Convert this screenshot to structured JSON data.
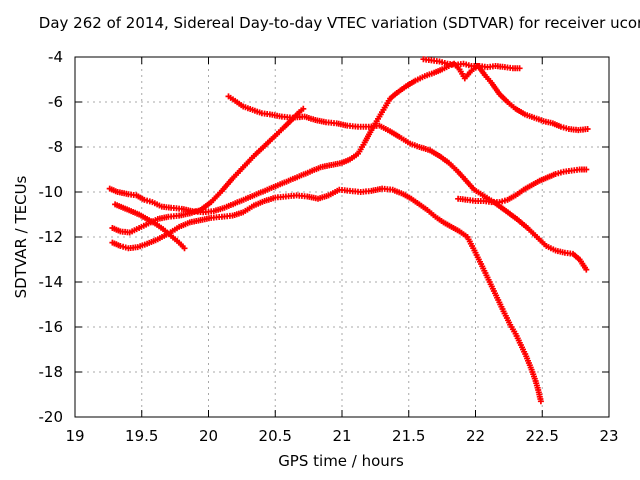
{
  "title": "Day 262 of 2014, Sidereal Day-to-day VTEC variation (SDTVAR) for receiver ucor",
  "chart_data": {
    "type": "scatter",
    "marker": "plus",
    "title": "Day 262 of 2014, Sidereal Day-to-day VTEC variation (SDTVAR) for receiver ucor",
    "xlabel": "GPS time / hours",
    "ylabel": "SDTVAR / TECUs",
    "xlim": [
      19,
      23
    ],
    "ylim": [
      -20,
      -4
    ],
    "grid": true,
    "legend": "none",
    "x_ticks": [
      19,
      19.5,
      20,
      20.5,
      21,
      21.5,
      22,
      22.5,
      23
    ],
    "y_ticks": [
      -20,
      -18,
      -16,
      -14,
      -12,
      -10,
      -8,
      -6,
      -4
    ],
    "x_tick_labels": [
      "19",
      "19.5",
      "20",
      "20.5",
      "21",
      "21.5",
      "22",
      "22.5",
      "23"
    ],
    "y_tick_labels": [
      "-20",
      "-18",
      "-16",
      "-14",
      "-12",
      "-10",
      "-8",
      "-6",
      "-4"
    ],
    "colors": {
      "series": "#ff0000",
      "grid": "#a8a8a8",
      "axis": "#000000",
      "background": "#ffffff",
      "text": "#000000"
    },
    "series": [
      {
        "name": "trace-1",
        "points": [
          [
            20.15,
            -5.75
          ],
          [
            20.2,
            -5.95
          ],
          [
            20.26,
            -6.2
          ],
          [
            20.33,
            -6.35
          ],
          [
            20.4,
            -6.5
          ],
          [
            20.46,
            -6.55
          ],
          [
            20.55,
            -6.65
          ],
          [
            20.63,
            -6.7
          ],
          [
            20.72,
            -6.65
          ],
          [
            20.8,
            -6.8
          ],
          [
            20.88,
            -6.9
          ],
          [
            20.96,
            -6.95
          ],
          [
            21.04,
            -7.05
          ],
          [
            21.12,
            -7.1
          ],
          [
            21.2,
            -7.1
          ],
          [
            21.28,
            -7.05
          ],
          [
            21.36,
            -7.3
          ],
          [
            21.43,
            -7.55
          ],
          [
            21.51,
            -7.85
          ],
          [
            21.58,
            -8.0
          ],
          [
            21.66,
            -8.15
          ],
          [
            21.73,
            -8.4
          ],
          [
            21.8,
            -8.7
          ],
          [
            21.87,
            -9.1
          ],
          [
            21.93,
            -9.5
          ],
          [
            21.99,
            -9.9
          ],
          [
            22.07,
            -10.2
          ],
          [
            22.15,
            -10.5
          ],
          [
            22.23,
            -10.85
          ],
          [
            22.31,
            -11.2
          ],
          [
            22.39,
            -11.6
          ],
          [
            22.46,
            -12.0
          ],
          [
            22.53,
            -12.4
          ],
          [
            22.6,
            -12.6
          ],
          [
            22.67,
            -12.7
          ],
          [
            22.73,
            -12.75
          ],
          [
            22.78,
            -13.0
          ],
          [
            22.83,
            -13.45
          ]
        ]
      },
      {
        "name": "trace-2",
        "points": [
          [
            19.28,
            -11.6
          ],
          [
            19.34,
            -11.75
          ],
          [
            19.41,
            -11.8
          ],
          [
            19.48,
            -11.6
          ],
          [
            19.55,
            -11.4
          ],
          [
            19.62,
            -11.2
          ],
          [
            19.7,
            -11.1
          ],
          [
            19.78,
            -11.05
          ],
          [
            19.86,
            -10.95
          ],
          [
            19.94,
            -10.8
          ],
          [
            20.02,
            -10.45
          ],
          [
            20.1,
            -9.95
          ],
          [
            20.18,
            -9.4
          ],
          [
            20.26,
            -8.9
          ],
          [
            20.34,
            -8.4
          ],
          [
            20.42,
            -7.95
          ],
          [
            20.5,
            -7.5
          ],
          [
            20.57,
            -7.1
          ],
          [
            20.63,
            -6.75
          ],
          [
            20.68,
            -6.45
          ],
          [
            20.71,
            -6.3
          ]
        ]
      },
      {
        "name": "trace-3",
        "points": [
          [
            19.26,
            -9.85
          ],
          [
            19.32,
            -10.0
          ],
          [
            19.4,
            -10.1
          ],
          [
            19.46,
            -10.15
          ],
          [
            19.52,
            -10.35
          ],
          [
            19.58,
            -10.45
          ],
          [
            19.65,
            -10.65
          ],
          [
            19.72,
            -10.7
          ],
          [
            19.8,
            -10.75
          ],
          [
            19.88,
            -10.85
          ],
          [
            19.96,
            -10.9
          ],
          [
            20.04,
            -10.85
          ],
          [
            20.12,
            -10.7
          ],
          [
            20.2,
            -10.5
          ],
          [
            20.28,
            -10.3
          ],
          [
            20.36,
            -10.1
          ],
          [
            20.44,
            -9.9
          ],
          [
            20.52,
            -9.7
          ],
          [
            20.6,
            -9.5
          ],
          [
            20.68,
            -9.3
          ],
          [
            20.76,
            -9.1
          ],
          [
            20.84,
            -8.9
          ],
          [
            20.92,
            -8.8
          ],
          [
            21.0,
            -8.7
          ],
          [
            21.06,
            -8.55
          ],
          [
            21.12,
            -8.3
          ],
          [
            21.17,
            -7.8
          ],
          [
            21.22,
            -7.25
          ],
          [
            21.27,
            -6.75
          ],
          [
            21.31,
            -6.35
          ],
          [
            21.36,
            -5.85
          ],
          [
            21.41,
            -5.6
          ],
          [
            21.48,
            -5.3
          ],
          [
            21.55,
            -5.05
          ],
          [
            21.62,
            -4.85
          ],
          [
            21.69,
            -4.7
          ],
          [
            21.75,
            -4.55
          ],
          [
            21.8,
            -4.4
          ],
          [
            21.84,
            -4.3
          ],
          [
            21.88,
            -4.55
          ],
          [
            21.92,
            -4.95
          ],
          [
            21.97,
            -4.6
          ],
          [
            22.02,
            -4.4
          ],
          [
            22.07,
            -4.8
          ],
          [
            22.12,
            -5.15
          ],
          [
            22.18,
            -5.65
          ],
          [
            22.24,
            -6.0
          ],
          [
            22.3,
            -6.3
          ],
          [
            22.37,
            -6.55
          ],
          [
            22.44,
            -6.7
          ],
          [
            22.51,
            -6.85
          ],
          [
            22.58,
            -6.95
          ],
          [
            22.64,
            -7.1
          ],
          [
            22.7,
            -7.2
          ],
          [
            22.77,
            -7.25
          ],
          [
            22.84,
            -7.2
          ]
        ]
      },
      {
        "name": "trace-4",
        "points": [
          [
            21.61,
            -4.1
          ],
          [
            21.67,
            -4.15
          ],
          [
            21.73,
            -4.2
          ],
          [
            21.79,
            -4.3
          ],
          [
            21.85,
            -4.35
          ],
          [
            21.91,
            -4.3
          ],
          [
            21.97,
            -4.4
          ],
          [
            22.03,
            -4.4
          ],
          [
            22.09,
            -4.45
          ],
          [
            22.15,
            -4.4
          ],
          [
            22.22,
            -4.45
          ],
          [
            22.28,
            -4.5
          ],
          [
            22.33,
            -4.5
          ]
        ]
      },
      {
        "name": "trace-5",
        "points": [
          [
            19.28,
            -12.25
          ],
          [
            19.34,
            -12.4
          ],
          [
            19.4,
            -12.5
          ],
          [
            19.47,
            -12.45
          ],
          [
            19.54,
            -12.3
          ],
          [
            19.62,
            -12.1
          ],
          [
            19.7,
            -11.85
          ],
          [
            19.78,
            -11.55
          ],
          [
            19.86,
            -11.35
          ],
          [
            19.94,
            -11.25
          ],
          [
            20.02,
            -11.15
          ],
          [
            20.1,
            -11.1
          ],
          [
            20.18,
            -11.05
          ],
          [
            20.26,
            -10.9
          ],
          [
            20.34,
            -10.6
          ],
          [
            20.42,
            -10.4
          ],
          [
            20.5,
            -10.25
          ],
          [
            20.58,
            -10.2
          ],
          [
            20.66,
            -10.15
          ],
          [
            20.74,
            -10.2
          ],
          [
            20.82,
            -10.3
          ],
          [
            20.9,
            -10.15
          ],
          [
            20.98,
            -9.9
          ],
          [
            21.06,
            -9.95
          ],
          [
            21.14,
            -10.0
          ],
          [
            21.22,
            -9.95
          ],
          [
            21.3,
            -9.85
          ],
          [
            21.38,
            -9.9
          ],
          [
            21.46,
            -10.1
          ],
          [
            21.52,
            -10.3
          ],
          [
            21.58,
            -10.55
          ],
          [
            21.64,
            -10.8
          ],
          [
            21.7,
            -11.1
          ],
          [
            21.76,
            -11.35
          ],
          [
            21.82,
            -11.55
          ],
          [
            21.88,
            -11.75
          ],
          [
            21.94,
            -12.0
          ],
          [
            22.0,
            -12.7
          ],
          [
            22.05,
            -13.3
          ],
          [
            22.09,
            -13.8
          ],
          [
            22.13,
            -14.3
          ],
          [
            22.17,
            -14.8
          ],
          [
            22.21,
            -15.3
          ],
          [
            22.26,
            -15.9
          ],
          [
            22.3,
            -16.3
          ],
          [
            22.34,
            -16.8
          ],
          [
            22.38,
            -17.3
          ],
          [
            22.42,
            -17.9
          ],
          [
            22.45,
            -18.4
          ],
          [
            22.47,
            -18.8
          ],
          [
            22.49,
            -19.3
          ]
        ]
      },
      {
        "name": "trace-6",
        "points": [
          [
            19.3,
            -10.55
          ],
          [
            19.36,
            -10.7
          ],
          [
            19.42,
            -10.85
          ],
          [
            19.48,
            -11.0
          ],
          [
            19.54,
            -11.2
          ],
          [
            19.6,
            -11.4
          ],
          [
            19.66,
            -11.65
          ],
          [
            19.72,
            -11.95
          ],
          [
            19.78,
            -12.25
          ],
          [
            19.82,
            -12.5
          ]
        ]
      },
      {
        "name": "trace-7",
        "points": [
          [
            21.87,
            -10.3
          ],
          [
            21.94,
            -10.35
          ],
          [
            22.0,
            -10.4
          ],
          [
            22.06,
            -10.4
          ],
          [
            22.12,
            -10.45
          ],
          [
            22.18,
            -10.45
          ],
          [
            22.24,
            -10.35
          ],
          [
            22.3,
            -10.15
          ],
          [
            22.36,
            -9.9
          ],
          [
            22.42,
            -9.7
          ],
          [
            22.48,
            -9.5
          ],
          [
            22.54,
            -9.35
          ],
          [
            22.6,
            -9.2
          ],
          [
            22.66,
            -9.1
          ],
          [
            22.72,
            -9.05
          ],
          [
            22.78,
            -9.0
          ],
          [
            22.83,
            -9.0
          ]
        ]
      }
    ]
  }
}
